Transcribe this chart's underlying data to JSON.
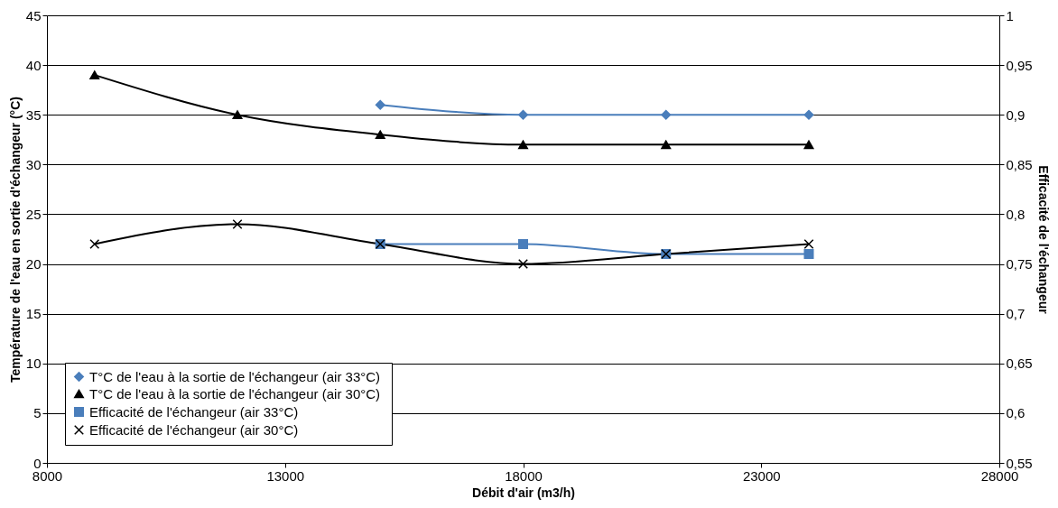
{
  "chart_data": {
    "type": "line",
    "xlabel": "Débit d'air (m3/h)",
    "ylabel": "Température de l'eau en sortie d'échangeur (°C)",
    "y2label": "Efficacité de l'échangeur",
    "x": [
      9000,
      12000,
      15000,
      18000,
      21000,
      24000
    ],
    "series": [
      {
        "name": "T°C de l'eau à la sortie de l'échangeur  (air 33°C)",
        "color": "#4a7ebb",
        "marker": "diamond",
        "values": [
          null,
          null,
          36,
          35,
          35,
          35
        ]
      },
      {
        "name": "T°C de l'eau à la sortie de l'échangeur  (air 30°C)",
        "color": "#000000",
        "marker": "triangle",
        "values": [
          39,
          35,
          33,
          32,
          32,
          32
        ]
      },
      {
        "name": "Efficacité de l'échangeur  (air 33°C)",
        "color": "#4a7ebb",
        "marker": "square",
        "axis": "y2",
        "values": [
          null,
          null,
          0.77,
          0.77,
          0.76,
          0.76
        ]
      },
      {
        "name": "Efficacité de l'échangeur  (air 30°C)",
        "color": "#000000",
        "marker": "cross",
        "axis": "y2",
        "values": [
          0.77,
          0.79,
          0.77,
          0.75,
          0.76,
          0.77
        ]
      }
    ],
    "xlim": [
      8000,
      28000
    ],
    "xticks": [
      8000,
      13000,
      18000,
      23000,
      28000
    ],
    "ylim": [
      0,
      45
    ],
    "yticks": [
      0,
      5,
      10,
      15,
      20,
      25,
      30,
      35,
      40,
      45
    ],
    "y2lim": [
      0.55,
      1
    ],
    "y2ticks": [
      {
        "value": 0.55,
        "label": "0,55"
      },
      {
        "value": 0.6,
        "label": "0,6"
      },
      {
        "value": 0.65,
        "label": "0,65"
      },
      {
        "value": 0.7,
        "label": "0,7"
      },
      {
        "value": 0.75,
        "label": "0,75"
      },
      {
        "value": 0.8,
        "label": "0,8"
      },
      {
        "value": 0.85,
        "label": "0,85"
      },
      {
        "value": 0.9,
        "label": "0,9"
      },
      {
        "value": 0.95,
        "label": "0,95"
      },
      {
        "value": 1,
        "label": "1"
      }
    ],
    "grid": "y",
    "legend": "bottom left"
  }
}
